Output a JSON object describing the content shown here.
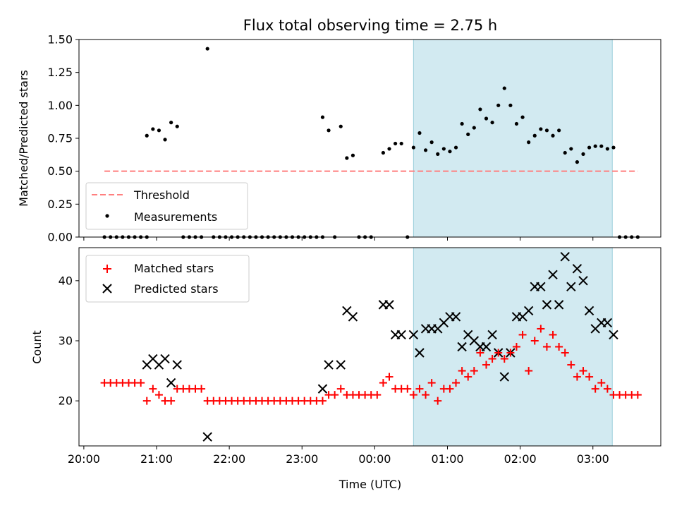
{
  "chart_data": [
    {
      "type": "scatter",
      "title": "Flux total observing time = 2.75 h",
      "ylabel": "Matched/Predicted stars",
      "xlabel": "",
      "ylim": [
        0,
        1.5
      ],
      "y_ticks": [
        "0.00",
        "0.25",
        "0.50",
        "0.75",
        "1.00",
        "1.25",
        "1.50"
      ],
      "highlight_span": [
        "00:32",
        "03:16"
      ],
      "highlight_color": "#add8e6",
      "threshold": {
        "name": "Threshold",
        "y": 0.5,
        "x_start": "20:17",
        "x_end": "03:37",
        "color": "#ff7f7f"
      },
      "legend": {
        "position": "lower-left",
        "entries": [
          "Threshold",
          "Measurements"
        ]
      },
      "series": [
        {
          "name": "Measurements",
          "color": "#000000",
          "points": [
            [
              "20:17",
              0
            ],
            [
              "20:22",
              0
            ],
            [
              "20:27",
              0
            ],
            [
              "20:32",
              0
            ],
            [
              "20:37",
              0
            ],
            [
              "20:42",
              0
            ],
            [
              "20:47",
              0
            ],
            [
              "20:52",
              0
            ],
            [
              "20:52",
              0.77
            ],
            [
              "20:57",
              0.82
            ],
            [
              "21:02",
              0.81
            ],
            [
              "21:07",
              0.74
            ],
            [
              "21:12",
              0.87
            ],
            [
              "21:17",
              0.84
            ],
            [
              "21:22",
              0
            ],
            [
              "21:27",
              0
            ],
            [
              "21:32",
              0
            ],
            [
              "21:37",
              0
            ],
            [
              "21:42",
              1.43
            ],
            [
              "21:47",
              0
            ],
            [
              "21:52",
              0
            ],
            [
              "21:57",
              0
            ],
            [
              "22:02",
              0
            ],
            [
              "22:07",
              0
            ],
            [
              "22:12",
              0
            ],
            [
              "22:17",
              0
            ],
            [
              "22:22",
              0
            ],
            [
              "22:27",
              0
            ],
            [
              "22:32",
              0
            ],
            [
              "22:37",
              0
            ],
            [
              "22:42",
              0
            ],
            [
              "22:47",
              0
            ],
            [
              "22:52",
              0
            ],
            [
              "22:57",
              0
            ],
            [
              "23:02",
              0
            ],
            [
              "23:07",
              0
            ],
            [
              "23:12",
              0
            ],
            [
              "23:17",
              0
            ],
            [
              "23:17",
              0.91
            ],
            [
              "23:22",
              0.81
            ],
            [
              "23:27",
              0
            ],
            [
              "23:32",
              0.84
            ],
            [
              "23:37",
              0.6
            ],
            [
              "23:42",
              0.62
            ],
            [
              "23:47",
              0
            ],
            [
              "23:52",
              0
            ],
            [
              "23:57",
              0
            ],
            [
              "00:07",
              0.64
            ],
            [
              "00:12",
              0.67
            ],
            [
              "00:17",
              0.71
            ],
            [
              "00:22",
              0.71
            ],
            [
              "00:27",
              0
            ],
            [
              "00:32",
              0.68
            ],
            [
              "00:37",
              0.79
            ],
            [
              "00:42",
              0.66
            ],
            [
              "00:47",
              0.72
            ],
            [
              "00:52",
              0.63
            ],
            [
              "00:57",
              0.67
            ],
            [
              "01:02",
              0.65
            ],
            [
              "01:07",
              0.68
            ],
            [
              "01:12",
              0.86
            ],
            [
              "01:17",
              0.78
            ],
            [
              "01:22",
              0.83
            ],
            [
              "01:27",
              0.97
            ],
            [
              "01:32",
              0.9
            ],
            [
              "01:37",
              0.87
            ],
            [
              "01:42",
              1.0
            ],
            [
              "01:47",
              1.13
            ],
            [
              "01:52",
              1.0
            ],
            [
              "01:57",
              0.86
            ],
            [
              "02:02",
              0.91
            ],
            [
              "02:07",
              0.72
            ],
            [
              "02:12",
              0.77
            ],
            [
              "02:17",
              0.82
            ],
            [
              "02:22",
              0.81
            ],
            [
              "02:27",
              0.77
            ],
            [
              "02:32",
              0.81
            ],
            [
              "02:37",
              0.64
            ],
            [
              "02:42",
              0.67
            ],
            [
              "02:47",
              0.57
            ],
            [
              "02:52",
              0.63
            ],
            [
              "02:57",
              0.68
            ],
            [
              "03:02",
              0.69
            ],
            [
              "03:07",
              0.69
            ],
            [
              "03:12",
              0.67
            ],
            [
              "03:17",
              0.68
            ],
            [
              "03:22",
              0
            ],
            [
              "03:27",
              0
            ],
            [
              "03:32",
              0
            ],
            [
              "03:37",
              0
            ]
          ]
        }
      ]
    },
    {
      "type": "scatter",
      "title": "",
      "ylabel": "Count",
      "xlabel": "Time (UTC)",
      "ylim": [
        12.5,
        45.5
      ],
      "y_ticks": [
        "20",
        "30",
        "40"
      ],
      "x_ticks": [
        "20:00",
        "21:00",
        "22:00",
        "23:00",
        "00:00",
        "01:00",
        "02:00",
        "03:00"
      ],
      "xlim": [
        "19:56",
        "03:56"
      ],
      "highlight_span": [
        "00:32",
        "03:16"
      ],
      "highlight_color": "#add8e6",
      "legend": {
        "position": "upper-left",
        "entries": [
          "Matched stars",
          "Predicted stars"
        ]
      },
      "series": [
        {
          "name": "Matched stars",
          "marker": "plus",
          "color": "#ff0000",
          "points": [
            [
              "20:17",
              23
            ],
            [
              "20:22",
              23
            ],
            [
              "20:27",
              23
            ],
            [
              "20:32",
              23
            ],
            [
              "20:37",
              23
            ],
            [
              "20:42",
              23
            ],
            [
              "20:47",
              23
            ],
            [
              "20:52",
              20
            ],
            [
              "20:57",
              22
            ],
            [
              "21:02",
              21
            ],
            [
              "21:07",
              20
            ],
            [
              "21:12",
              20
            ],
            [
              "21:17",
              22
            ],
            [
              "21:22",
              22
            ],
            [
              "21:27",
              22
            ],
            [
              "21:32",
              22
            ],
            [
              "21:37",
              22
            ],
            [
              "21:42",
              20
            ],
            [
              "21:47",
              20
            ],
            [
              "21:52",
              20
            ],
            [
              "21:57",
              20
            ],
            [
              "22:02",
              20
            ],
            [
              "22:07",
              20
            ],
            [
              "22:12",
              20
            ],
            [
              "22:17",
              20
            ],
            [
              "22:22",
              20
            ],
            [
              "22:27",
              20
            ],
            [
              "22:32",
              20
            ],
            [
              "22:37",
              20
            ],
            [
              "22:42",
              20
            ],
            [
              "22:47",
              20
            ],
            [
              "22:52",
              20
            ],
            [
              "22:57",
              20
            ],
            [
              "23:02",
              20
            ],
            [
              "23:07",
              20
            ],
            [
              "23:12",
              20
            ],
            [
              "23:17",
              20
            ],
            [
              "23:22",
              21
            ],
            [
              "23:27",
              21
            ],
            [
              "23:32",
              22
            ],
            [
              "23:37",
              21
            ],
            [
              "23:42",
              21
            ],
            [
              "23:47",
              21
            ],
            [
              "23:52",
              21
            ],
            [
              "23:57",
              21
            ],
            [
              "00:02",
              21
            ],
            [
              "00:07",
              23
            ],
            [
              "00:12",
              24
            ],
            [
              "00:17",
              22
            ],
            [
              "00:22",
              22
            ],
            [
              "00:27",
              22
            ],
            [
              "00:32",
              21
            ],
            [
              "00:37",
              22
            ],
            [
              "00:42",
              21
            ],
            [
              "00:47",
              23
            ],
            [
              "00:52",
              20
            ],
            [
              "00:57",
              22
            ],
            [
              "01:02",
              22
            ],
            [
              "01:07",
              23
            ],
            [
              "01:12",
              25
            ],
            [
              "01:17",
              24
            ],
            [
              "01:22",
              25
            ],
            [
              "01:27",
              28
            ],
            [
              "01:32",
              26
            ],
            [
              "01:37",
              27
            ],
            [
              "01:42",
              28
            ],
            [
              "01:47",
              27
            ],
            [
              "01:52",
              28
            ],
            [
              "01:57",
              29
            ],
            [
              "02:02",
              31
            ],
            [
              "02:07",
              25
            ],
            [
              "02:12",
              30
            ],
            [
              "02:17",
              32
            ],
            [
              "02:22",
              29
            ],
            [
              "02:27",
              31
            ],
            [
              "02:32",
              29
            ],
            [
              "02:37",
              28
            ],
            [
              "02:42",
              26
            ],
            [
              "02:47",
              24
            ],
            [
              "02:52",
              25
            ],
            [
              "02:57",
              24
            ],
            [
              "03:02",
              22
            ],
            [
              "03:07",
              23
            ],
            [
              "03:12",
              22
            ],
            [
              "03:17",
              21
            ],
            [
              "03:22",
              21
            ],
            [
              "03:27",
              21
            ],
            [
              "03:32",
              21
            ],
            [
              "03:37",
              21
            ]
          ]
        },
        {
          "name": "Predicted stars",
          "marker": "x",
          "color": "#000000",
          "points": [
            [
              "20:52",
              26
            ],
            [
              "20:57",
              27
            ],
            [
              "21:02",
              26
            ],
            [
              "21:07",
              27
            ],
            [
              "21:12",
              23
            ],
            [
              "21:17",
              26
            ],
            [
              "21:42",
              14
            ],
            [
              "23:17",
              22
            ],
            [
              "23:22",
              26
            ],
            [
              "23:32",
              26
            ],
            [
              "23:37",
              35
            ],
            [
              "23:42",
              34
            ],
            [
              "00:07",
              36
            ],
            [
              "00:12",
              36
            ],
            [
              "00:17",
              31
            ],
            [
              "00:22",
              31
            ],
            [
              "00:32",
              31
            ],
            [
              "00:37",
              28
            ],
            [
              "00:42",
              32
            ],
            [
              "00:47",
              32
            ],
            [
              "00:52",
              32
            ],
            [
              "00:57",
              33
            ],
            [
              "01:02",
              34
            ],
            [
              "01:07",
              34
            ],
            [
              "01:12",
              29
            ],
            [
              "01:17",
              31
            ],
            [
              "01:22",
              30
            ],
            [
              "01:27",
              29
            ],
            [
              "01:32",
              29
            ],
            [
              "01:37",
              31
            ],
            [
              "01:42",
              28
            ],
            [
              "01:47",
              24
            ],
            [
              "01:52",
              28
            ],
            [
              "01:57",
              34
            ],
            [
              "02:02",
              34
            ],
            [
              "02:07",
              35
            ],
            [
              "02:12",
              39
            ],
            [
              "02:17",
              39
            ],
            [
              "02:22",
              36
            ],
            [
              "02:27",
              41
            ],
            [
              "02:32",
              36
            ],
            [
              "02:37",
              44
            ],
            [
              "02:42",
              39
            ],
            [
              "02:47",
              42
            ],
            [
              "02:52",
              40
            ],
            [
              "02:57",
              35
            ],
            [
              "03:02",
              32
            ],
            [
              "03:07",
              33
            ],
            [
              "03:12",
              33
            ],
            [
              "03:17",
              31
            ]
          ]
        }
      ]
    }
  ]
}
